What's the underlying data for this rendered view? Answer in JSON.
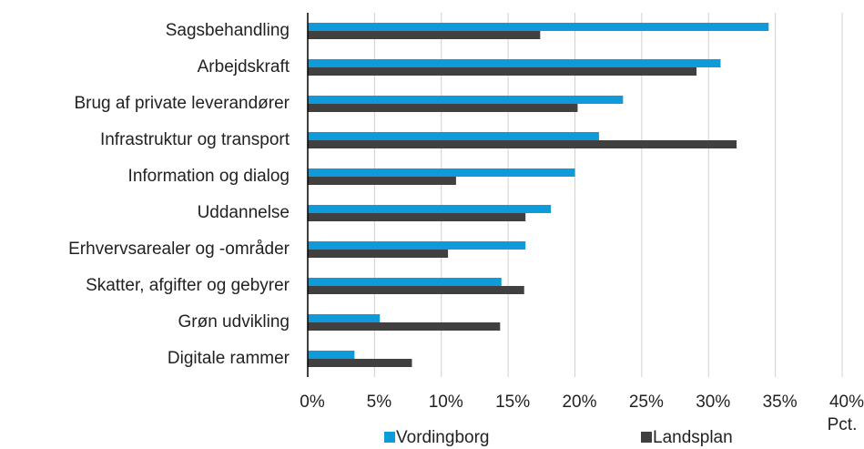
{
  "chart_data": {
    "type": "hbar",
    "categories": [
      "Sagsbehandling",
      "Arbejdskraft",
      "Brug af private leverandører",
      "Infrastruktur og transport",
      "Information og dialog",
      "Uddannelse",
      "Erhvervsarealer og -områder",
      "Skatter, afgifter og gebyrer",
      "Grøn udvikling",
      "Digitale rammer"
    ],
    "series": [
      {
        "name": "Vordingborg",
        "color": "#0f9ad9",
        "values": [
          34.5,
          30.9,
          23.6,
          21.8,
          20.0,
          18.2,
          16.3,
          14.5,
          5.4,
          3.5
        ]
      },
      {
        "name": "Landsplan",
        "color": "#404040",
        "values": [
          17.4,
          29.1,
          20.2,
          32.1,
          11.1,
          16.3,
          10.5,
          16.2,
          14.4,
          7.8
        ]
      }
    ],
    "xlabel": "Pct.",
    "xlim": [
      0,
      40
    ],
    "xticks": [
      {
        "value": 0,
        "label": "0%"
      },
      {
        "value": 5,
        "label": "5%"
      },
      {
        "value": 10,
        "label": "10%"
      },
      {
        "value": 15,
        "label": "15%"
      },
      {
        "value": 20,
        "label": "20%"
      },
      {
        "value": 25,
        "label": "25%"
      },
      {
        "value": 30,
        "label": "30%"
      },
      {
        "value": 35,
        "label": "35%"
      },
      {
        "value": 40,
        "label": "40%"
      }
    ],
    "grid": true,
    "legend": "bottom"
  }
}
